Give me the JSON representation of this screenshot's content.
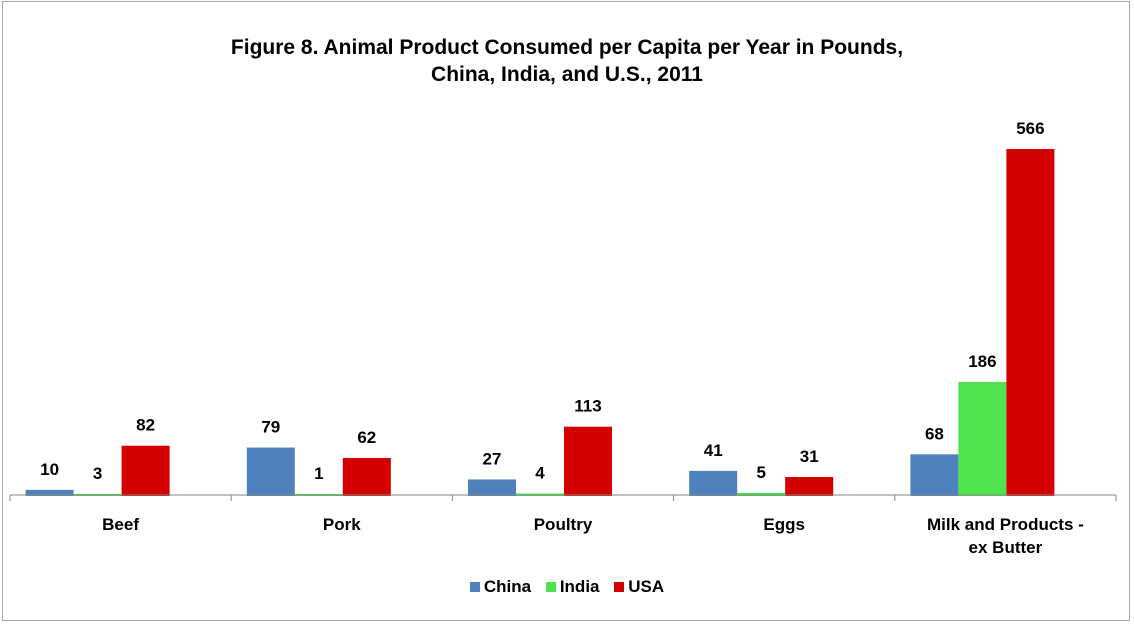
{
  "chart_data": {
    "type": "bar",
    "title_line1": "Figure 8. Animal  Product Consumed  per Capita per Year in Pounds,",
    "title_line2": "China, India, and U.S., 2011",
    "categories": [
      "Beef",
      "Pork",
      "Poultry",
      "Eggs",
      "Milk and Products - ex Butter"
    ],
    "category_lines": [
      [
        "Beef"
      ],
      [
        "Pork"
      ],
      [
        "Poultry"
      ],
      [
        "Eggs"
      ],
      [
        "Milk and Products -",
        "ex Butter"
      ]
    ],
    "series": [
      {
        "name": "China",
        "color": "#4f81bd",
        "values": [
          10,
          79,
          27,
          41,
          68
        ]
      },
      {
        "name": "India",
        "color": "#4fe34f",
        "values": [
          3,
          1,
          4,
          5,
          186
        ]
      },
      {
        "name": "USA",
        "color": "#d40000",
        "values": [
          82,
          62,
          113,
          31,
          566
        ]
      }
    ],
    "ylim": [
      0,
      600
    ],
    "grid": false,
    "legend_position": "bottom",
    "xlabel": "",
    "ylabel": ""
  }
}
